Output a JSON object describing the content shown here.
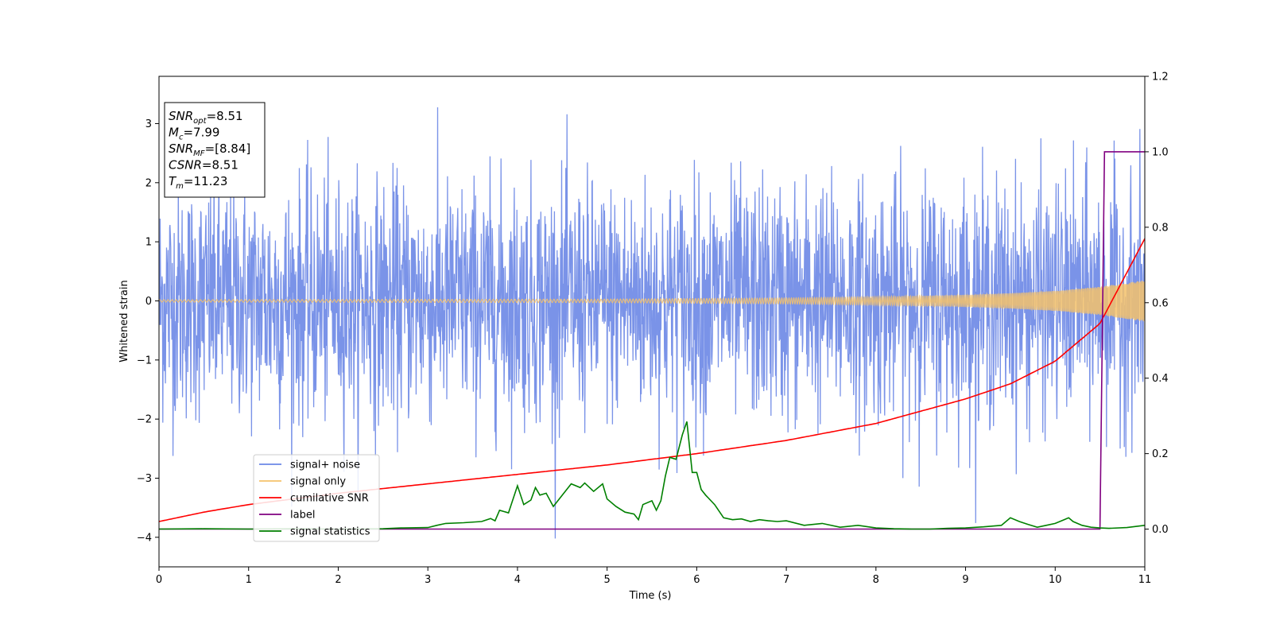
{
  "chart_data": {
    "type": "line",
    "title": "",
    "xlabel": "Time (s)",
    "ylabel": "Whitened strain",
    "xlim": [
      0,
      11
    ],
    "ylim_left": [
      -4.5,
      3.8
    ],
    "ylim_right": [
      -0.1,
      1.2
    ],
    "x_ticks": [
      0,
      1,
      2,
      3,
      4,
      5,
      6,
      7,
      8,
      9,
      10,
      11
    ],
    "y_ticks_left": [
      3,
      2,
      1,
      0,
      -1,
      -2,
      -3,
      -4
    ],
    "y_ticks_left_labels": [
      "3",
      "2",
      "1",
      "0",
      "−1",
      "−2",
      "−3",
      "−4"
    ],
    "y_ticks_right": [
      1.2,
      1.0,
      0.8,
      0.6,
      0.4,
      0.2,
      0.0
    ],
    "y_ticks_right_labels": [
      "1.2",
      "1.0",
      "0.8",
      "0.6",
      "0.4",
      "0.2",
      "0.0"
    ],
    "grid": false,
    "legend_position": "lower-left",
    "series": [
      {
        "name": "signal+ noise",
        "axis": "left",
        "color": "#6b87e6",
        "description_stats": {
          "mean": 0.0,
          "typical_range": [
            -2.5,
            2.5
          ],
          "max": 3.4,
          "min": -4.15
        }
      },
      {
        "name": "signal only",
        "axis": "left",
        "color": "#f5c26b",
        "envelope": {
          "x": [
            0,
            5,
            7,
            8,
            9,
            9.5,
            10,
            10.5,
            11
          ],
          "amplitude": [
            0.02,
            0.03,
            0.05,
            0.07,
            0.1,
            0.13,
            0.17,
            0.24,
            0.35
          ]
        }
      },
      {
        "name": "cumilative SNR",
        "axis": "right",
        "color": "#ff0000",
        "x": [
          0,
          0.5,
          1,
          2,
          3,
          4,
          5,
          6,
          7,
          8,
          9,
          9.5,
          10,
          10.5,
          11
        ],
        "y": [
          0.02,
          0.045,
          0.065,
          0.095,
          0.12,
          0.145,
          0.17,
          0.2,
          0.235,
          0.28,
          0.345,
          0.385,
          0.445,
          0.545,
          0.77
        ]
      },
      {
        "name": "label",
        "axis": "right",
        "color": "#800080",
        "x": [
          0,
          10.5,
          10.55,
          10.6,
          11
        ],
        "y": [
          0.0,
          0.0,
          1.0,
          1.0,
          1.0
        ]
      },
      {
        "name": "signal statistics",
        "axis": "right",
        "color": "#008000",
        "x": [
          0,
          0.5,
          1,
          1.5,
          2,
          2.5,
          2.7,
          3,
          3.1,
          3.2,
          3.4,
          3.6,
          3.7,
          3.75,
          3.8,
          3.9,
          4.0,
          4.07,
          4.15,
          4.2,
          4.25,
          4.32,
          4.4,
          4.5,
          4.6,
          4.7,
          4.75,
          4.85,
          4.95,
          5.0,
          5.1,
          5.2,
          5.3,
          5.35,
          5.4,
          5.5,
          5.55,
          5.6,
          5.65,
          5.7,
          5.77,
          5.84,
          5.89,
          5.95,
          6.0,
          6.05,
          6.1,
          6.2,
          6.3,
          6.4,
          6.5,
          6.6,
          6.7,
          6.8,
          6.9,
          7.0,
          7.2,
          7.4,
          7.6,
          7.8,
          8.0,
          8.2,
          8.4,
          8.6,
          8.8,
          9.0,
          9.2,
          9.4,
          9.5,
          9.6,
          9.7,
          9.8,
          9.9,
          10.0,
          10.1,
          10.15,
          10.2,
          10.3,
          10.4,
          10.5,
          10.6,
          10.8,
          11.0
        ],
        "y": [
          0.0,
          0.001,
          0.0,
          0.001,
          0.0,
          0.001,
          0.003,
          0.004,
          0.01,
          0.015,
          0.017,
          0.02,
          0.028,
          0.022,
          0.05,
          0.043,
          0.115,
          0.065,
          0.077,
          0.11,
          0.09,
          0.095,
          0.06,
          0.09,
          0.12,
          0.11,
          0.122,
          0.1,
          0.12,
          0.08,
          0.06,
          0.045,
          0.04,
          0.025,
          0.065,
          0.075,
          0.05,
          0.075,
          0.14,
          0.19,
          0.185,
          0.25,
          0.285,
          0.15,
          0.15,
          0.105,
          0.09,
          0.065,
          0.03,
          0.025,
          0.027,
          0.02,
          0.025,
          0.022,
          0.02,
          0.022,
          0.01,
          0.015,
          0.005,
          0.01,
          0.003,
          0.001,
          0.0,
          0.0,
          0.002,
          0.003,
          0.006,
          0.01,
          0.03,
          0.02,
          0.012,
          0.005,
          0.01,
          0.015,
          0.025,
          0.03,
          0.02,
          0.01,
          0.005,
          0.003,
          0.002,
          0.004,
          0.01
        ]
      }
    ],
    "annotation_box": {
      "lines": [
        {
          "main": "SNR",
          "sub": "opt",
          "value": "=8.51"
        },
        {
          "main": "M",
          "sub": "c",
          "value": "=7.99"
        },
        {
          "main": "SNR",
          "sub": "MF",
          "value": "=[8.84]"
        },
        {
          "main": "CSNR",
          "sub": "",
          "value": "=8.51"
        },
        {
          "main": "T",
          "sub": "m",
          "value": "=11.23"
        }
      ]
    }
  }
}
